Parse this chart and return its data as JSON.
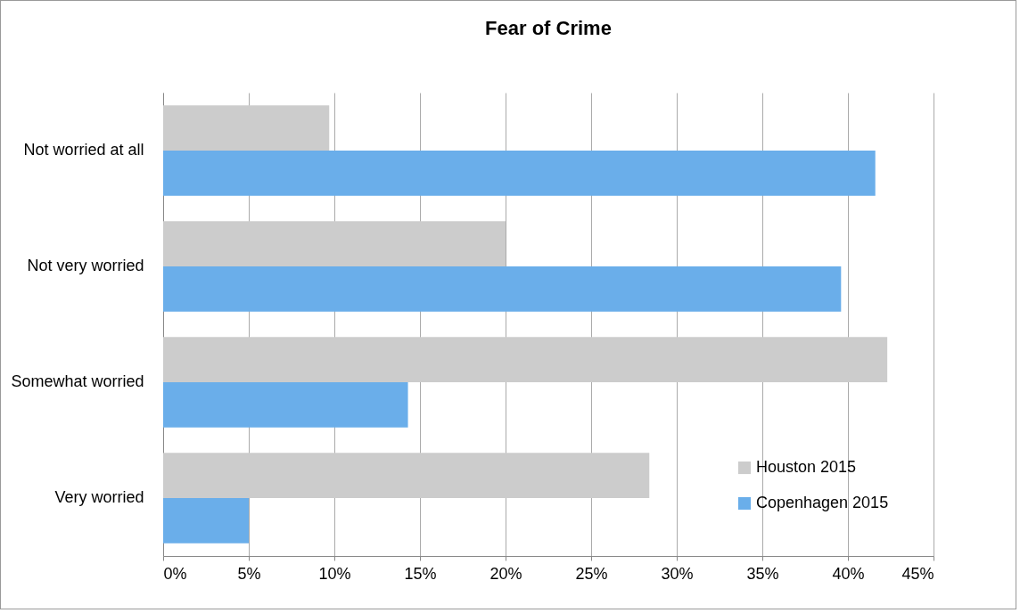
{
  "chart_data": {
    "type": "bar",
    "orientation": "horizontal",
    "title": "Fear of Crime",
    "categories": [
      "Not worried at all",
      "Not very worried",
      "Somewhat worried",
      "Very worried"
    ],
    "series": [
      {
        "name": "Houston 2015",
        "color": "#cccccc",
        "values": [
          9.7,
          20,
          42.3,
          28.4
        ]
      },
      {
        "name": "Copenhagen 2015",
        "color": "#6aaeea",
        "values": [
          41.6,
          39.6,
          14.3,
          5
        ]
      }
    ],
    "xlim": [
      0,
      45
    ],
    "xticks": [
      {
        "value": 0,
        "label": "0%"
      },
      {
        "value": 5,
        "label": "5%"
      },
      {
        "value": 10,
        "label": "10%"
      },
      {
        "value": 15,
        "label": "15%"
      },
      {
        "value": 20,
        "label": "20%"
      },
      {
        "value": 25,
        "label": "25%"
      },
      {
        "value": 30,
        "label": "30%"
      },
      {
        "value": 35,
        "label": "35%"
      },
      {
        "value": 40,
        "label": "40%"
      },
      {
        "value": 45,
        "label": "45%"
      }
    ],
    "grid": "x",
    "legend": "bottom right"
  }
}
